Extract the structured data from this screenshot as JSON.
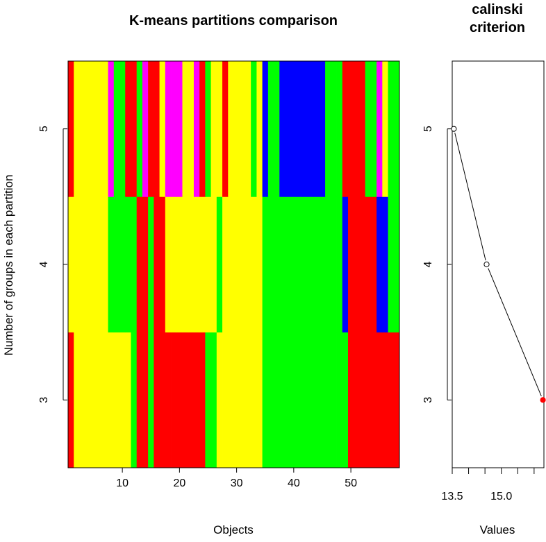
{
  "chart_data": [
    {
      "type": "heatmap",
      "title": "K-means partitions comparison",
      "xlabel": "Objects",
      "ylabel": "Number of groups in each partition",
      "xlim": [
        0.5,
        58.5
      ],
      "ylim": [
        2.5,
        5.5
      ],
      "x_ticks": [
        10,
        20,
        30,
        40,
        50
      ],
      "y_ticks": [
        3,
        4,
        5
      ],
      "palette": {
        "1": "#ff0000",
        "2": "#ffff00",
        "3": "#00ff00",
        "4": "#0000ff",
        "5": "#ff00ff"
      },
      "rows": [
        {
          "groups": 3,
          "cells": [
            1,
            2,
            2,
            2,
            2,
            2,
            2,
            2,
            2,
            2,
            2,
            3,
            1,
            1,
            3,
            1,
            1,
            1,
            1,
            1,
            1,
            1,
            1,
            1,
            3,
            3,
            2,
            2,
            2,
            2,
            2,
            2,
            2,
            2,
            3,
            3,
            3,
            3,
            3,
            3,
            3,
            3,
            3,
            3,
            3,
            3,
            3,
            3,
            3,
            1,
            1,
            1,
            1,
            1,
            1,
            1,
            1,
            1
          ]
        },
        {
          "groups": 4,
          "cells": [
            2,
            2,
            2,
            2,
            2,
            2,
            2,
            3,
            3,
            3,
            3,
            3,
            1,
            1,
            3,
            1,
            1,
            2,
            2,
            2,
            2,
            2,
            2,
            2,
            2,
            2,
            3,
            2,
            2,
            2,
            2,
            2,
            2,
            2,
            3,
            3,
            3,
            3,
            3,
            3,
            3,
            3,
            3,
            3,
            3,
            3,
            3,
            3,
            4,
            1,
            1,
            1,
            1,
            1,
            4,
            4,
            3,
            3
          ]
        },
        {
          "groups": 5,
          "cells": [
            1,
            2,
            2,
            2,
            2,
            2,
            2,
            5,
            3,
            3,
            1,
            1,
            3,
            5,
            1,
            1,
            2,
            5,
            5,
            5,
            2,
            2,
            5,
            1,
            3,
            2,
            2,
            1,
            2,
            2,
            2,
            2,
            3,
            2,
            4,
            3,
            3,
            4,
            4,
            4,
            4,
            4,
            4,
            4,
            4,
            3,
            3,
            3,
            1,
            1,
            1,
            1,
            3,
            3,
            5,
            2,
            3,
            3
          ]
        }
      ]
    },
    {
      "type": "line",
      "title": "calinski criterion",
      "xlabel": "Values",
      "ylabel": "",
      "xlim": [
        13.5,
        16.3
      ],
      "ylim": [
        2.5,
        5.5
      ],
      "x_ticks": [
        13.5,
        14.0,
        14.5,
        15.0,
        15.5,
        16.0
      ],
      "x_tick_labels": [
        "13.5",
        "",
        "",
        "15.0",
        "",
        ""
      ],
      "y_ticks": [
        3,
        4,
        5
      ],
      "points": [
        {
          "groups": 5,
          "value": 13.55,
          "best": false
        },
        {
          "groups": 4,
          "value": 14.55,
          "best": false
        },
        {
          "groups": 3,
          "value": 16.27,
          "best": true
        }
      ],
      "marker_color_default": "#ffffff",
      "marker_color_best": "#ff0000"
    }
  ]
}
